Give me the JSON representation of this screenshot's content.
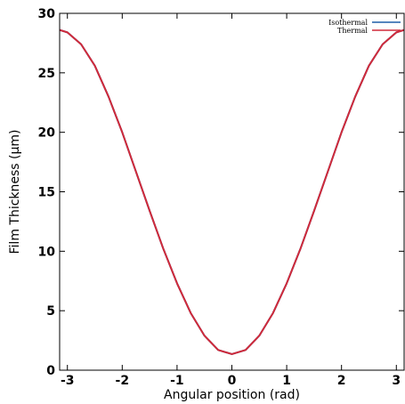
{
  "chart_data": {
    "type": "line",
    "title": "",
    "xlabel": "Angular position (rad)",
    "ylabel": "Film Thickness (μm)",
    "xlim": [
      -3.1416,
      3.1416
    ],
    "ylim": [
      0,
      30
    ],
    "xticks": [
      -3,
      -2,
      -1,
      0,
      1,
      2,
      3
    ],
    "yticks": [
      0,
      5,
      10,
      15,
      20,
      25,
      30
    ],
    "grid": false,
    "legend_position": "top-right",
    "series": [
      {
        "name": "Isothermal",
        "color": "#1f5fa8",
        "x": [
          -3.1416,
          -3.0,
          -2.75,
          -2.5,
          -2.25,
          -2.0,
          -1.75,
          -1.5,
          -1.25,
          -1.0,
          -0.75,
          -0.5,
          -0.25,
          0.0,
          0.25,
          0.5,
          0.75,
          1.0,
          1.25,
          1.5,
          1.75,
          2.0,
          2.25,
          2.5,
          2.75,
          3.0,
          3.1416
        ],
        "y": [
          28.6,
          28.4,
          27.4,
          25.6,
          23.0,
          20.0,
          16.7,
          13.4,
          10.2,
          7.3,
          4.8,
          2.9,
          1.7,
          1.35,
          1.7,
          2.9,
          4.8,
          7.3,
          10.2,
          13.4,
          16.7,
          20.0,
          23.0,
          25.6,
          27.4,
          28.4,
          28.6
        ]
      },
      {
        "name": "Thermal",
        "color": "#d02a3a",
        "x": [
          -3.1416,
          -3.0,
          -2.75,
          -2.5,
          -2.25,
          -2.0,
          -1.75,
          -1.5,
          -1.25,
          -1.0,
          -0.75,
          -0.5,
          -0.25,
          0.0,
          0.25,
          0.5,
          0.75,
          1.0,
          1.25,
          1.5,
          1.75,
          2.0,
          2.25,
          2.5,
          2.75,
          3.0,
          3.1416
        ],
        "y": [
          28.6,
          28.4,
          27.4,
          25.6,
          23.0,
          20.0,
          16.7,
          13.4,
          10.2,
          7.3,
          4.8,
          2.9,
          1.7,
          1.35,
          1.7,
          2.9,
          4.8,
          7.3,
          10.2,
          13.4,
          16.7,
          20.0,
          23.0,
          25.6,
          27.4,
          28.4,
          28.6
        ]
      }
    ]
  }
}
